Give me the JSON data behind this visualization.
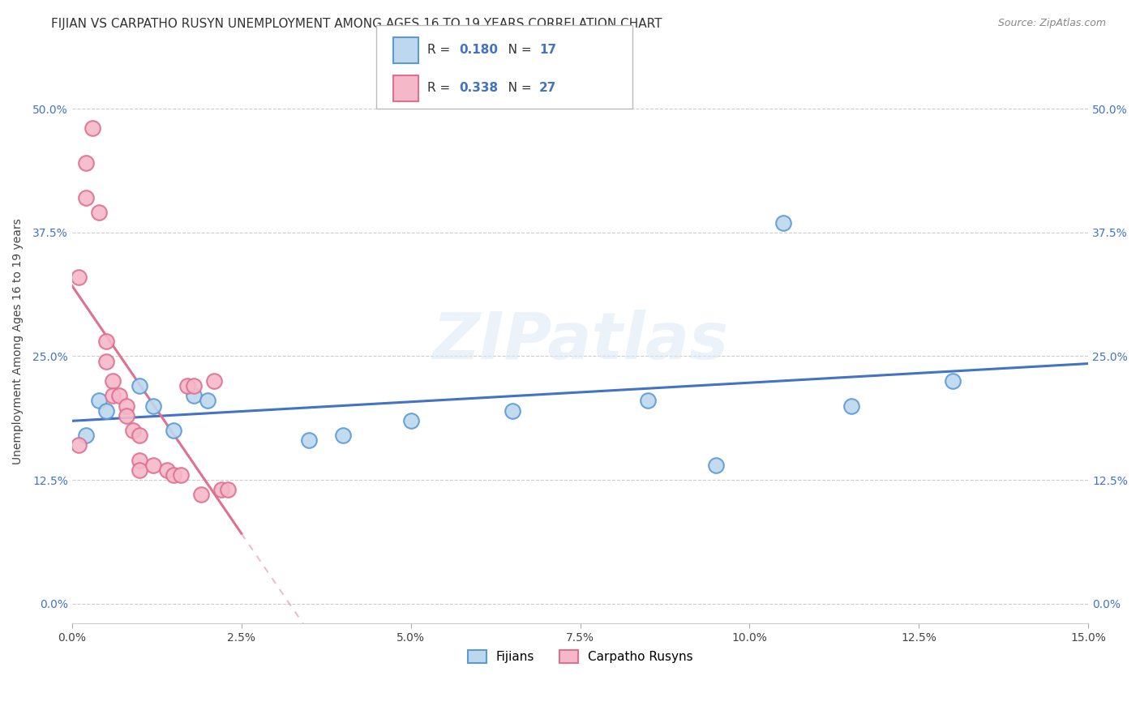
{
  "title": "FIJIAN VS CARPATHO RUSYN UNEMPLOYMENT AMONG AGES 16 TO 19 YEARS CORRELATION CHART",
  "source": "Source: ZipAtlas.com",
  "xlabel_vals": [
    0.0,
    2.5,
    5.0,
    7.5,
    10.0,
    12.5,
    15.0
  ],
  "ylabel_vals": [
    0.0,
    12.5,
    25.0,
    37.5,
    50.0
  ],
  "xlim": [
    0.0,
    15.0
  ],
  "ylim": [
    -2.0,
    55.0
  ],
  "ylabel": "Unemployment Among Ages 16 to 19 years",
  "watermark": "ZIPatlas",
  "r1": "0.180",
  "n1": "17",
  "r2": "0.338",
  "n2": "27",
  "fijian_color": "#5b9bd5",
  "fijian_fill": "#bdd7ee",
  "carpatho_edge": "#e07090",
  "carpatho_fill": "#f4b8c8",
  "fijian_x": [
    0.2,
    0.4,
    0.5,
    1.0,
    1.2,
    1.5,
    1.8,
    2.0,
    3.5,
    4.0,
    5.0,
    6.5,
    8.5,
    9.5,
    10.5,
    11.5,
    13.0
  ],
  "fijian_y": [
    17.0,
    20.5,
    19.5,
    22.0,
    20.0,
    17.5,
    21.0,
    20.5,
    16.5,
    17.0,
    18.5,
    19.5,
    20.5,
    14.0,
    38.5,
    20.0,
    22.5
  ],
  "carpatho_x": [
    0.1,
    0.1,
    0.2,
    0.2,
    0.3,
    0.4,
    0.5,
    0.5,
    0.6,
    0.6,
    0.7,
    0.8,
    0.8,
    0.9,
    1.0,
    1.0,
    1.0,
    1.2,
    1.4,
    1.5,
    1.6,
    1.7,
    1.8,
    1.9,
    2.1,
    2.2,
    2.3
  ],
  "carpatho_y": [
    16.0,
    33.0,
    41.0,
    44.5,
    48.0,
    39.5,
    26.5,
    24.5,
    22.5,
    21.0,
    21.0,
    20.0,
    19.0,
    17.5,
    17.0,
    14.5,
    13.5,
    14.0,
    13.5,
    13.0,
    13.0,
    22.0,
    22.0,
    11.0,
    22.5,
    11.5,
    11.5
  ],
  "title_fontsize": 11,
  "tick_fontsize": 10,
  "legend_fontsize": 11
}
